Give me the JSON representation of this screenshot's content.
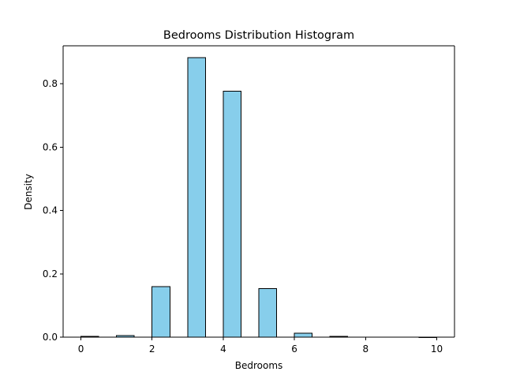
{
  "chart_data": {
    "type": "bar",
    "title": "Bedrooms Distribution Histogram",
    "xlabel": "Bedrooms",
    "ylabel": "Density",
    "xlim": [
      -0.5,
      10.5
    ],
    "ylim": [
      0,
      0.92
    ],
    "xticks": [
      0,
      2,
      4,
      6,
      8,
      10
    ],
    "yticks": [
      0.0,
      0.2,
      0.4,
      0.6,
      0.8
    ],
    "bar_color": "#87ceeb",
    "edge_color": "#000000",
    "bins": [
      {
        "x0": 0.0,
        "x1": 0.5,
        "value": 0.003
      },
      {
        "x0": 1.0,
        "x1": 1.5,
        "value": 0.005
      },
      {
        "x0": 2.0,
        "x1": 2.5,
        "value": 0.16
      },
      {
        "x0": 3.0,
        "x1": 3.5,
        "value": 0.882
      },
      {
        "x0": 4.0,
        "x1": 4.5,
        "value": 0.777
      },
      {
        "x0": 5.0,
        "x1": 5.5,
        "value": 0.153
      },
      {
        "x0": 6.0,
        "x1": 6.5,
        "value": 0.012
      },
      {
        "x0": 7.0,
        "x1": 7.5,
        "value": 0.002
      },
      {
        "x0": 9.5,
        "x1": 10.0,
        "value": 0.0002
      }
    ]
  }
}
